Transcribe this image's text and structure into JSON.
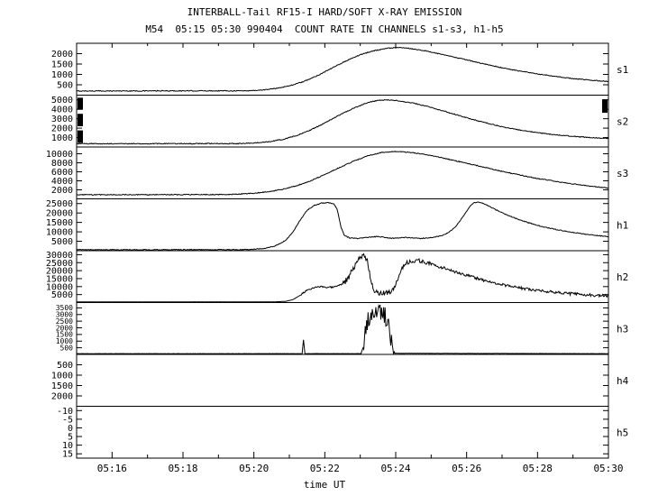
{
  "title": "INTERBALL-Tail RF15-I HARD/SOFT X-RAY EMISSION",
  "subtitle": "M54  05:15 05:30 990404  COUNT RATE IN CHANNELS s1-s3, h1-h5",
  "xlabel": "time UT",
  "colors": {
    "fg": "#000000",
    "bg": "#ffffff"
  },
  "chart_data": {
    "type": "line",
    "title": "INTERBALL-Tail RF15-I HARD/SOFT X-RAY EMISSION",
    "subtitle": "M54  05:15 05:30 990404  COUNT RATE IN CHANNELS s1-s3, h1-h5",
    "xlabel": "time UT",
    "x_domain": [
      0,
      15
    ],
    "x_start_label": "05:15",
    "x_ticks": [
      {
        "t": 1,
        "label": "05:16"
      },
      {
        "t": 3,
        "label": "05:18"
      },
      {
        "t": 5,
        "label": "05:20"
      },
      {
        "t": 7,
        "label": "05:22"
      },
      {
        "t": 9,
        "label": "05:24"
      },
      {
        "t": 11,
        "label": "05:26"
      },
      {
        "t": 13,
        "label": "05:28"
      },
      {
        "t": 15,
        "label": "05:30"
      }
    ],
    "x_minor": [
      2,
      4,
      6,
      8,
      10,
      12,
      14
    ],
    "grid": false,
    "legend": "none",
    "panels": [
      {
        "id": "s1",
        "label": "s1",
        "ymin": 0,
        "ymax": 2500,
        "flip": false,
        "yticks": [
          500,
          1000,
          1500,
          2000
        ],
        "points": [
          [
            0,
            200
          ],
          [
            4.8,
            210
          ],
          [
            5.2,
            240
          ],
          [
            5.6,
            320
          ],
          [
            6.0,
            450
          ],
          [
            6.4,
            650
          ],
          [
            6.8,
            950
          ],
          [
            7.2,
            1300
          ],
          [
            7.6,
            1650
          ],
          [
            8.0,
            1950
          ],
          [
            8.4,
            2150
          ],
          [
            8.8,
            2270
          ],
          [
            9.1,
            2290
          ],
          [
            9.4,
            2250
          ],
          [
            9.8,
            2150
          ],
          [
            10.2,
            2000
          ],
          [
            10.6,
            1850
          ],
          [
            11.0,
            1700
          ],
          [
            11.5,
            1500
          ],
          [
            12.0,
            1320
          ],
          [
            12.5,
            1160
          ],
          [
            13.0,
            1020
          ],
          [
            13.5,
            900
          ],
          [
            14.0,
            800
          ],
          [
            14.5,
            720
          ],
          [
            15,
            660
          ]
        ],
        "noise": [
          {
            "from": 0,
            "to": 15,
            "amp": 20
          }
        ]
      },
      {
        "id": "s2",
        "label": "s2",
        "ymin": 0,
        "ymax": 5500,
        "flip": false,
        "yticks": [
          1000,
          2000,
          3000,
          4000,
          5000
        ],
        "points": [
          [
            0,
            350
          ],
          [
            4.6,
            360
          ],
          [
            5.0,
            420
          ],
          [
            5.4,
            550
          ],
          [
            5.8,
            800
          ],
          [
            6.2,
            1200
          ],
          [
            6.6,
            1800
          ],
          [
            7.0,
            2550
          ],
          [
            7.4,
            3350
          ],
          [
            7.8,
            4100
          ],
          [
            8.2,
            4700
          ],
          [
            8.5,
            4950
          ],
          [
            8.8,
            5000
          ],
          [
            9.1,
            4900
          ],
          [
            9.5,
            4650
          ],
          [
            10.0,
            4200
          ],
          [
            10.5,
            3650
          ],
          [
            11.0,
            3100
          ],
          [
            11.5,
            2600
          ],
          [
            12.0,
            2150
          ],
          [
            12.5,
            1800
          ],
          [
            13.0,
            1520
          ],
          [
            13.5,
            1300
          ],
          [
            14.0,
            1130
          ],
          [
            14.5,
            1000
          ],
          [
            15,
            900
          ]
        ],
        "noise": [
          {
            "from": 0,
            "to": 15,
            "amp": 45
          }
        ],
        "edge_marks": [
          {
            "side": "left",
            "top": 0.05,
            "bottom": 0.28
          },
          {
            "side": "left",
            "top": 0.36,
            "bottom": 0.6
          },
          {
            "side": "left",
            "top": 0.68,
            "bottom": 0.92
          },
          {
            "side": "right",
            "top": 0.08,
            "bottom": 0.34
          }
        ]
      },
      {
        "id": "s3",
        "label": "s3",
        "ymin": 0,
        "ymax": 11500,
        "flip": false,
        "yticks": [
          2000,
          4000,
          6000,
          8000,
          10000
        ],
        "points": [
          [
            0,
            900
          ],
          [
            4.2,
            950
          ],
          [
            4.6,
            1050
          ],
          [
            5.0,
            1250
          ],
          [
            5.4,
            1600
          ],
          [
            5.8,
            2100
          ],
          [
            6.2,
            2900
          ],
          [
            6.6,
            4000
          ],
          [
            7.0,
            5400
          ],
          [
            7.4,
            6900
          ],
          [
            7.8,
            8300
          ],
          [
            8.2,
            9500
          ],
          [
            8.6,
            10300
          ],
          [
            9.0,
            10500
          ],
          [
            9.4,
            10300
          ],
          [
            9.8,
            9900
          ],
          [
            10.2,
            9300
          ],
          [
            10.6,
            8600
          ],
          [
            11.0,
            7900
          ],
          [
            11.5,
            7000
          ],
          [
            12.0,
            6100
          ],
          [
            12.5,
            5300
          ],
          [
            13.0,
            4500
          ],
          [
            13.5,
            3900
          ],
          [
            14.0,
            3300
          ],
          [
            14.5,
            2800
          ],
          [
            15,
            2400
          ]
        ],
        "noise": [
          {
            "from": 0,
            "to": 15,
            "amp": 90
          }
        ]
      },
      {
        "id": "h1",
        "label": "h1",
        "ymin": 0,
        "ymax": 27500,
        "flip": false,
        "yticks": [
          5000,
          10000,
          15000,
          20000,
          25000
        ],
        "points": [
          [
            0,
            500
          ],
          [
            4.6,
            550
          ],
          [
            5.0,
            750
          ],
          [
            5.3,
            1200
          ],
          [
            5.6,
            2500
          ],
          [
            5.9,
            5500
          ],
          [
            6.1,
            10000
          ],
          [
            6.3,
            16000
          ],
          [
            6.5,
            21500
          ],
          [
            6.7,
            24000
          ],
          [
            6.9,
            25200
          ],
          [
            7.1,
            25400
          ],
          [
            7.25,
            25000
          ],
          [
            7.35,
            22000
          ],
          [
            7.45,
            13000
          ],
          [
            7.55,
            8000
          ],
          [
            7.7,
            6800
          ],
          [
            7.9,
            6500
          ],
          [
            8.1,
            6800
          ],
          [
            8.3,
            7200
          ],
          [
            8.5,
            7500
          ],
          [
            8.7,
            7000
          ],
          [
            8.9,
            6600
          ],
          [
            9.1,
            6800
          ],
          [
            9.3,
            7000
          ],
          [
            9.5,
            6700
          ],
          [
            9.7,
            6500
          ],
          [
            9.9,
            6800
          ],
          [
            10.1,
            7200
          ],
          [
            10.3,
            8000
          ],
          [
            10.5,
            9800
          ],
          [
            10.7,
            13000
          ],
          [
            10.9,
            18000
          ],
          [
            11.05,
            22500
          ],
          [
            11.2,
            25500
          ],
          [
            11.35,
            25800
          ],
          [
            11.5,
            24800
          ],
          [
            11.7,
            23000
          ],
          [
            11.9,
            21000
          ],
          [
            12.2,
            18500
          ],
          [
            12.5,
            16300
          ],
          [
            12.8,
            14500
          ],
          [
            13.1,
            13000
          ],
          [
            13.5,
            11300
          ],
          [
            14.0,
            9700
          ],
          [
            14.5,
            8400
          ],
          [
            15,
            7400
          ]
        ],
        "noise": [
          {
            "from": 0,
            "to": 15,
            "amp": 220
          }
        ]
      },
      {
        "id": "h2",
        "label": "h2",
        "ymin": 0,
        "ymax": 32500,
        "flip": false,
        "yticks": [
          5000,
          10000,
          15000,
          20000,
          25000,
          30000
        ],
        "points": [
          [
            0,
            400
          ],
          [
            5.6,
            450
          ],
          [
            5.9,
            800
          ],
          [
            6.1,
            1800
          ],
          [
            6.3,
            4500
          ],
          [
            6.5,
            7800
          ],
          [
            6.7,
            9500
          ],
          [
            6.9,
            9800
          ],
          [
            7.1,
            9500
          ],
          [
            7.3,
            9800
          ],
          [
            7.5,
            11500
          ],
          [
            7.65,
            15000
          ],
          [
            7.8,
            21000
          ],
          [
            7.95,
            27500
          ],
          [
            8.1,
            29500
          ],
          [
            8.2,
            26000
          ],
          [
            8.3,
            14000
          ],
          [
            8.4,
            7500
          ],
          [
            8.5,
            6200
          ],
          [
            8.6,
            5800
          ],
          [
            8.7,
            6000
          ],
          [
            8.8,
            6500
          ],
          [
            8.9,
            7500
          ],
          [
            9.0,
            11000
          ],
          [
            9.1,
            18000
          ],
          [
            9.25,
            24000
          ],
          [
            9.4,
            26000
          ],
          [
            9.6,
            26500
          ],
          [
            9.8,
            25500
          ],
          [
            10.0,
            24000
          ],
          [
            10.3,
            22000
          ],
          [
            10.6,
            19800
          ],
          [
            11.0,
            17000
          ],
          [
            11.4,
            14500
          ],
          [
            11.8,
            12300
          ],
          [
            12.2,
            10400
          ],
          [
            12.6,
            8800
          ],
          [
            13.0,
            7500
          ],
          [
            13.5,
            6300
          ],
          [
            14.0,
            5400
          ],
          [
            14.5,
            4700
          ],
          [
            15,
            4200
          ]
        ],
        "noise": [
          {
            "from": 0,
            "to": 6.3,
            "amp": 60
          },
          {
            "from": 6.3,
            "to": 7.5,
            "amp": 500
          },
          {
            "from": 7.5,
            "to": 8.3,
            "amp": 1800
          },
          {
            "from": 8.3,
            "to": 9.0,
            "amp": 1500
          },
          {
            "from": 9.0,
            "to": 10.0,
            "amp": 1300
          },
          {
            "from": 10.0,
            "to": 15,
            "amp": 900
          }
        ]
      },
      {
        "id": "h3",
        "label": "h3",
        "ymin": 0,
        "ymax": 3900,
        "flip": false,
        "yticks": [
          500,
          1000,
          1500,
          2000,
          2500,
          3000,
          3500
        ],
        "points": [
          [
            0,
            60
          ],
          [
            6.36,
            60
          ],
          [
            6.4,
            1100
          ],
          [
            6.44,
            60
          ],
          [
            8.02,
            60
          ],
          [
            8.08,
            500
          ],
          [
            8.14,
            1600
          ],
          [
            8.2,
            2400
          ],
          [
            8.3,
            3000
          ],
          [
            8.4,
            3300
          ],
          [
            8.5,
            3400
          ],
          [
            8.6,
            3250
          ],
          [
            8.7,
            2900
          ],
          [
            8.78,
            2200
          ],
          [
            8.86,
            1200
          ],
          [
            8.92,
            400
          ],
          [
            8.98,
            80
          ],
          [
            15,
            60
          ]
        ],
        "noise": [
          {
            "from": 0,
            "to": 8.08,
            "amp": 6
          },
          {
            "from": 8.08,
            "to": 8.95,
            "amp": 700
          },
          {
            "from": 8.95,
            "to": 15,
            "amp": 6
          }
        ]
      },
      {
        "id": "h4",
        "label": "h4",
        "ymin": 0,
        "ymax": 2500,
        "flip": true,
        "yticks": [
          500,
          1000,
          1500,
          2000
        ],
        "points": [],
        "noise": []
      },
      {
        "id": "h5",
        "label": "h5",
        "ymin": -12.5,
        "ymax": 17.5,
        "flip": true,
        "yticks": [
          -10,
          -5,
          0,
          5,
          10,
          15
        ],
        "points": [],
        "noise": []
      }
    ]
  }
}
